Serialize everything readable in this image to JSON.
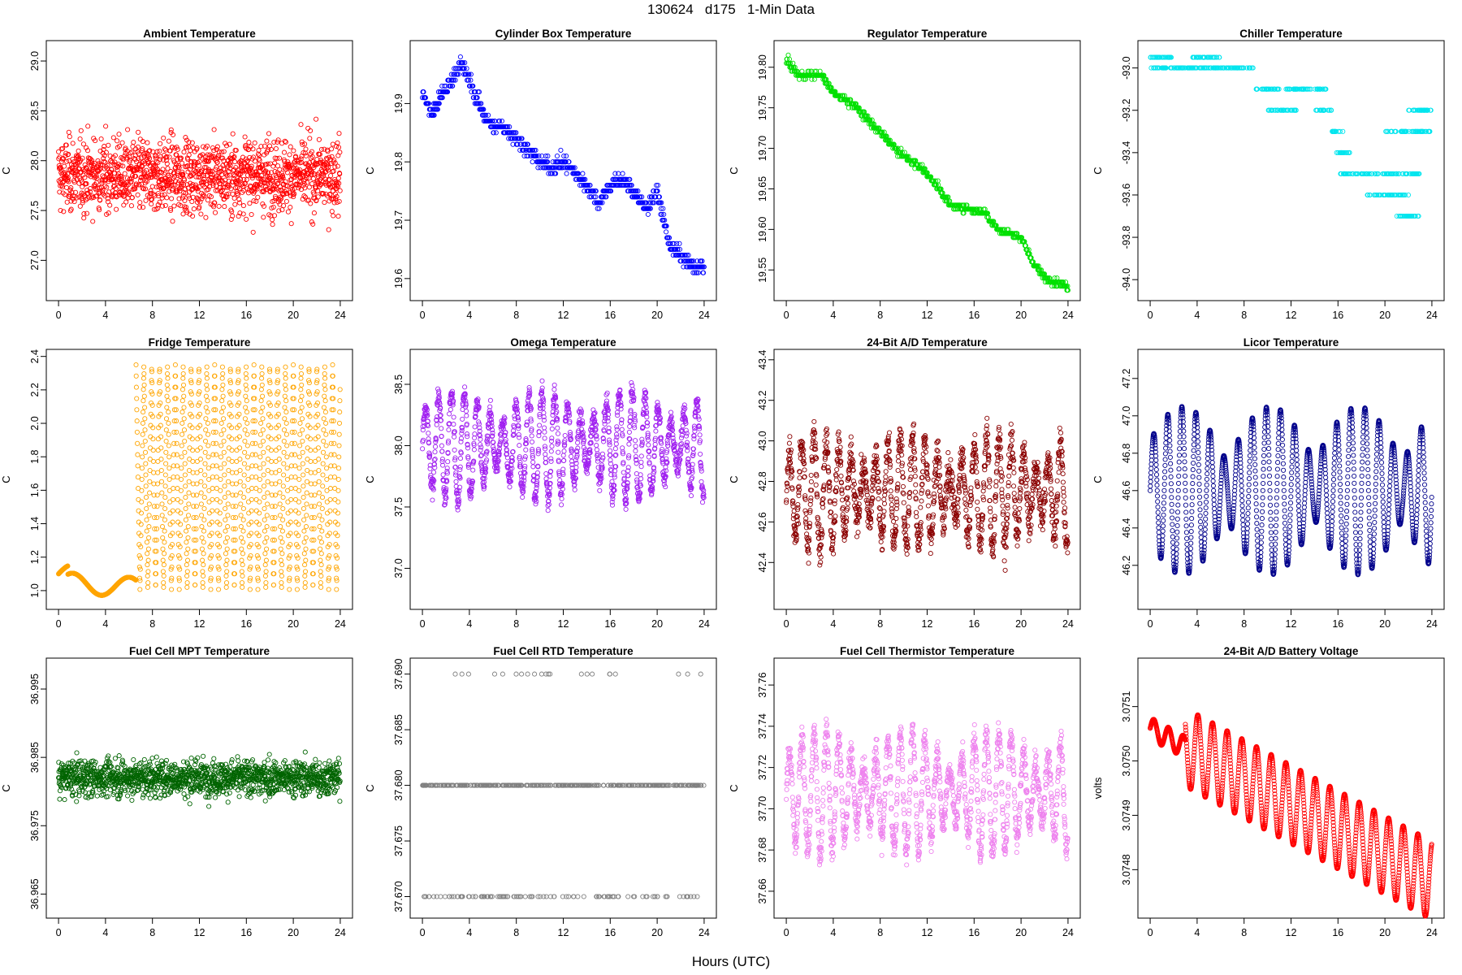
{
  "title": "130624   d175   1-Min Data",
  "xlabel": "Hours (UTC)",
  "chart_data": [
    {
      "type": "scatter",
      "title": "Ambient Temperature",
      "ylabel": "C",
      "color": "#ff0000",
      "xlim": [
        0,
        24
      ],
      "ylim": [
        26.7,
        29.1
      ],
      "xticks": [
        0,
        4,
        8,
        12,
        16,
        20,
        24
      ],
      "yticks": [
        "27.0",
        "27.5",
        "28.0",
        "28.5",
        "29.0"
      ],
      "pattern": "noise",
      "params": {
        "center": 27.85,
        "spread": 0.55,
        "min": 26.75,
        "max": 29.05
      }
    },
    {
      "type": "scatter",
      "title": "Cylinder Box Temperature",
      "ylabel": "C",
      "color": "#0000ff",
      "xlim": [
        0,
        24
      ],
      "ylim": [
        19.58,
        19.99
      ],
      "xticks": [
        0,
        4,
        8,
        12,
        16,
        20,
        24
      ],
      "yticks": [
        "19.6",
        "19.7",
        "19.8",
        "19.9"
      ],
      "pattern": "path",
      "params": {
        "points": [
          [
            0,
            19.92
          ],
          [
            0.8,
            19.88
          ],
          [
            1.5,
            19.91
          ],
          [
            2.5,
            19.94
          ],
          [
            3.2,
            19.97
          ],
          [
            4,
            19.94
          ],
          [
            5,
            19.89
          ],
          [
            6,
            19.86
          ],
          [
            7,
            19.86
          ],
          [
            8,
            19.84
          ],
          [
            9,
            19.82
          ],
          [
            10,
            19.8
          ],
          [
            11,
            19.79
          ],
          [
            12,
            19.8
          ],
          [
            13,
            19.78
          ],
          [
            14,
            19.76
          ],
          [
            15,
            19.73
          ],
          [
            16,
            19.76
          ],
          [
            17,
            19.77
          ],
          [
            18,
            19.75
          ],
          [
            19,
            19.72
          ],
          [
            20,
            19.75
          ],
          [
            21,
            19.66
          ],
          [
            22,
            19.64
          ],
          [
            23,
            19.62
          ],
          [
            24,
            19.62
          ]
        ],
        "step": 0.01,
        "noise": 0.012
      }
    },
    {
      "type": "scatter",
      "title": "Regulator Temperature",
      "ylabel": "C",
      "color": "#00e000",
      "xlim": [
        0,
        24
      ],
      "ylim": [
        19.525,
        19.82
      ],
      "xticks": [
        0,
        4,
        8,
        12,
        16,
        20,
        24
      ],
      "yticks": [
        "19.55",
        "19.60",
        "19.65",
        "19.70",
        "19.75",
        "19.80"
      ],
      "pattern": "path",
      "params": {
        "points": [
          [
            0,
            19.81
          ],
          [
            1,
            19.79
          ],
          [
            3,
            19.79
          ],
          [
            4,
            19.77
          ],
          [
            6,
            19.75
          ],
          [
            8,
            19.72
          ],
          [
            10,
            19.69
          ],
          [
            12,
            19.67
          ],
          [
            13,
            19.65
          ],
          [
            14,
            19.63
          ],
          [
            17,
            19.62
          ],
          [
            18,
            19.6
          ],
          [
            20,
            19.59
          ],
          [
            21,
            19.56
          ],
          [
            22,
            19.54
          ],
          [
            24,
            19.53
          ]
        ],
        "step": 0.005,
        "noise": 0.004
      }
    },
    {
      "type": "scatter",
      "title": "Chiller Temperature",
      "ylabel": "C",
      "color": "#00e5ee",
      "xlim": [
        0,
        24
      ],
      "ylim": [
        -94.05,
        -92.92
      ],
      "xticks": [
        0,
        4,
        8,
        12,
        16,
        20,
        24
      ],
      "yticks": [
        "-93.0",
        "-93.2",
        "-93.4",
        "-93.6",
        "-93.8",
        "-94.0"
      ],
      "pattern": "steps",
      "params": {
        "segments": [
          [
            0,
            2,
            -92.95
          ],
          [
            0,
            8.8,
            -93.0
          ],
          [
            3.5,
            6,
            -92.95
          ],
          [
            9,
            11,
            -93.1
          ],
          [
            10,
            12.5,
            -93.2
          ],
          [
            11.5,
            15,
            -93.1
          ],
          [
            14,
            15.5,
            -93.2
          ],
          [
            15.5,
            16.5,
            -93.3
          ],
          [
            15.8,
            17,
            -93.4
          ],
          [
            16,
            19.5,
            -93.5
          ],
          [
            18.5,
            22,
            -93.6
          ],
          [
            19.5,
            23,
            -93.5
          ],
          [
            20,
            24,
            -93.3
          ],
          [
            21,
            23,
            -93.7
          ],
          [
            22,
            24,
            -93.2
          ]
        ]
      }
    },
    {
      "type": "scatter",
      "title": "Fridge Temperature",
      "ylabel": "C",
      "color": "#ffa500",
      "xlim": [
        0,
        24
      ],
      "ylim": [
        0.95,
        2.38
      ],
      "xticks": [
        0,
        4,
        8,
        12,
        16,
        20,
        24
      ],
      "yticks": [
        "1.0",
        "1.2",
        "1.4",
        "1.6",
        "1.8",
        "2.0",
        "2.2",
        "2.4"
      ],
      "pattern": "fridge",
      "params": {
        "base": 1.0,
        "top": 2.35,
        "switch": 6.6
      }
    },
    {
      "type": "scatter",
      "title": "Omega Temperature",
      "ylabel": "C",
      "color": "#a020f0",
      "xlim": [
        0,
        24
      ],
      "ylim": [
        36.75,
        38.7
      ],
      "xticks": [
        0,
        4,
        8,
        12,
        16,
        20,
        24
      ],
      "yticks": [
        "37.0",
        "37.5",
        "38.0",
        "38.5"
      ],
      "pattern": "osc",
      "params": {
        "center": 38.0,
        "amp": 0.45,
        "period": 1.1,
        "noise": 0.08
      }
    },
    {
      "type": "scatter",
      "title": "24-Bit A/D Temperature",
      "ylabel": "C",
      "color": "#8b0000",
      "xlim": [
        0,
        24
      ],
      "ylim": [
        42.22,
        43.4
      ],
      "xticks": [
        0,
        4,
        8,
        12,
        16,
        20,
        24
      ],
      "yticks": [
        "42.4",
        "42.6",
        "42.8",
        "43.0",
        "43.2",
        "43.4"
      ],
      "pattern": "osc",
      "params": {
        "center": 42.75,
        "amp": 0.28,
        "period": 1.05,
        "noise": 0.08
      }
    },
    {
      "type": "scatter",
      "title": "Licor Temperature",
      "ylabel": "C",
      "color": "#00008b",
      "xlim": [
        0,
        24
      ],
      "ylim": [
        46.02,
        47.3
      ],
      "xticks": [
        0,
        4,
        8,
        12,
        16,
        20,
        24
      ],
      "yticks": [
        "46.2",
        "46.4",
        "46.6",
        "46.8",
        "47.0",
        "47.2"
      ],
      "pattern": "osc",
      "params": {
        "center": 46.6,
        "amp": 0.45,
        "period": 1.2,
        "noise": 0.0
      }
    },
    {
      "type": "scatter",
      "title": "Fuel Cell MPT Temperature",
      "ylabel": "C",
      "color": "#006400",
      "xlim": [
        0,
        24
      ],
      "ylim": [
        36.963,
        36.998
      ],
      "xticks": [
        0,
        4,
        8,
        12,
        16,
        20,
        24
      ],
      "yticks": [
        "36.965",
        "36.975",
        "36.985",
        "36.995"
      ],
      "pattern": "noise",
      "params": {
        "center": 36.982,
        "spread": 0.004,
        "min": 36.964,
        "max": 36.997
      }
    },
    {
      "type": "scatter",
      "title": "Fuel Cell RTD Temperature",
      "ylabel": "C",
      "color": "#808080",
      "xlim": [
        0,
        24
      ],
      "ylim": [
        37.669,
        37.6905
      ],
      "xticks": [
        0,
        4,
        8,
        12,
        16,
        20,
        24
      ],
      "yticks": [
        "37.670",
        "37.675",
        "37.680",
        "37.685",
        "37.690"
      ],
      "pattern": "levels",
      "params": {
        "levels": [
          37.67,
          37.68,
          37.69
        ],
        "weights": [
          0.3,
          1.0,
          0.06
        ]
      }
    },
    {
      "type": "scatter",
      "title": "Fuel Cell Thermistor Temperature",
      "ylabel": "C",
      "color": "#ee82ee",
      "xlim": [
        0,
        24
      ],
      "ylim": [
        37.652,
        37.768
      ],
      "xticks": [
        0,
        4,
        8,
        12,
        16,
        20,
        24
      ],
      "yticks": [
        "37.66",
        "37.68",
        "37.70",
        "37.72",
        "37.74",
        "37.76"
      ],
      "pattern": "osc",
      "params": {
        "center": 37.708,
        "amp": 0.03,
        "period": 1.05,
        "noise": 0.006
      }
    },
    {
      "type": "scatter",
      "title": "24-Bit A/D Battery Voltage",
      "ylabel": "volts",
      "color": "#ff0000",
      "xlim": [
        0,
        24
      ],
      "ylim": [
        3.07473,
        3.07517
      ],
      "xticks": [
        0,
        4,
        8,
        12,
        16,
        20,
        24
      ],
      "yticks": [
        "3.0748",
        "3.0749",
        "3.0750",
        "3.0751"
      ],
      "pattern": "battery",
      "params": {
        "start": 3.07506,
        "end": 3.07478,
        "amp": 8e-05
      }
    }
  ]
}
